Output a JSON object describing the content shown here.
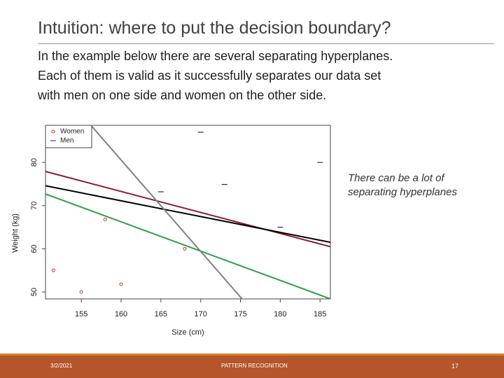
{
  "title": "Intuition: where to put the decision boundary?",
  "body": [
    "In the example below there are several separating hyperplanes.",
    "Each of them is valid as it successfully separates our data set",
    "with men on one side and women on the other side."
  ],
  "note": [
    "There can be a lot of",
    "separating hyperplanes"
  ],
  "footer": {
    "date": "3/2/2021",
    "center": "PATTERN RECOGNITION",
    "page": "17"
  },
  "chart_data": {
    "type": "scatter",
    "xlabel": "Size (cm)",
    "ylabel": "Weight (kg)",
    "xlim": [
      150.5,
      186.3
    ],
    "ylim": [
      48.4,
      88.6
    ],
    "xticks": [
      155,
      160,
      165,
      170,
      175,
      180,
      185
    ],
    "yticks": [
      50,
      60,
      70,
      80
    ],
    "legend": "top-left",
    "series": [
      {
        "name": "Women",
        "color": "#c0392b",
        "marker": "circle",
        "x": [
          155,
          160,
          158,
          168,
          151.5
        ],
        "values": [
          50,
          51.8,
          66.8,
          60,
          55
        ]
      },
      {
        "name": "Men",
        "color": "#222266",
        "marker": "dash",
        "x": [
          170,
          185,
          165,
          173,
          180
        ],
        "values": [
          87,
          80,
          73.2,
          74.9,
          65
        ]
      }
    ],
    "lines": [
      {
        "color": "#8b1a2b",
        "x": [
          150.5,
          186.3
        ],
        "y": [
          77.9,
          60.5
        ]
      },
      {
        "color": "#000000",
        "x": [
          150.5,
          186.3
        ],
        "y": [
          74.6,
          61.5
        ]
      },
      {
        "color": "#2e9e48",
        "x": [
          150.5,
          186.3
        ],
        "y": [
          72.7,
          48.4
        ]
      },
      {
        "color": "#808080",
        "x": [
          156.2,
          175.2
        ],
        "y": [
          88.6,
          48.4
        ]
      }
    ]
  }
}
